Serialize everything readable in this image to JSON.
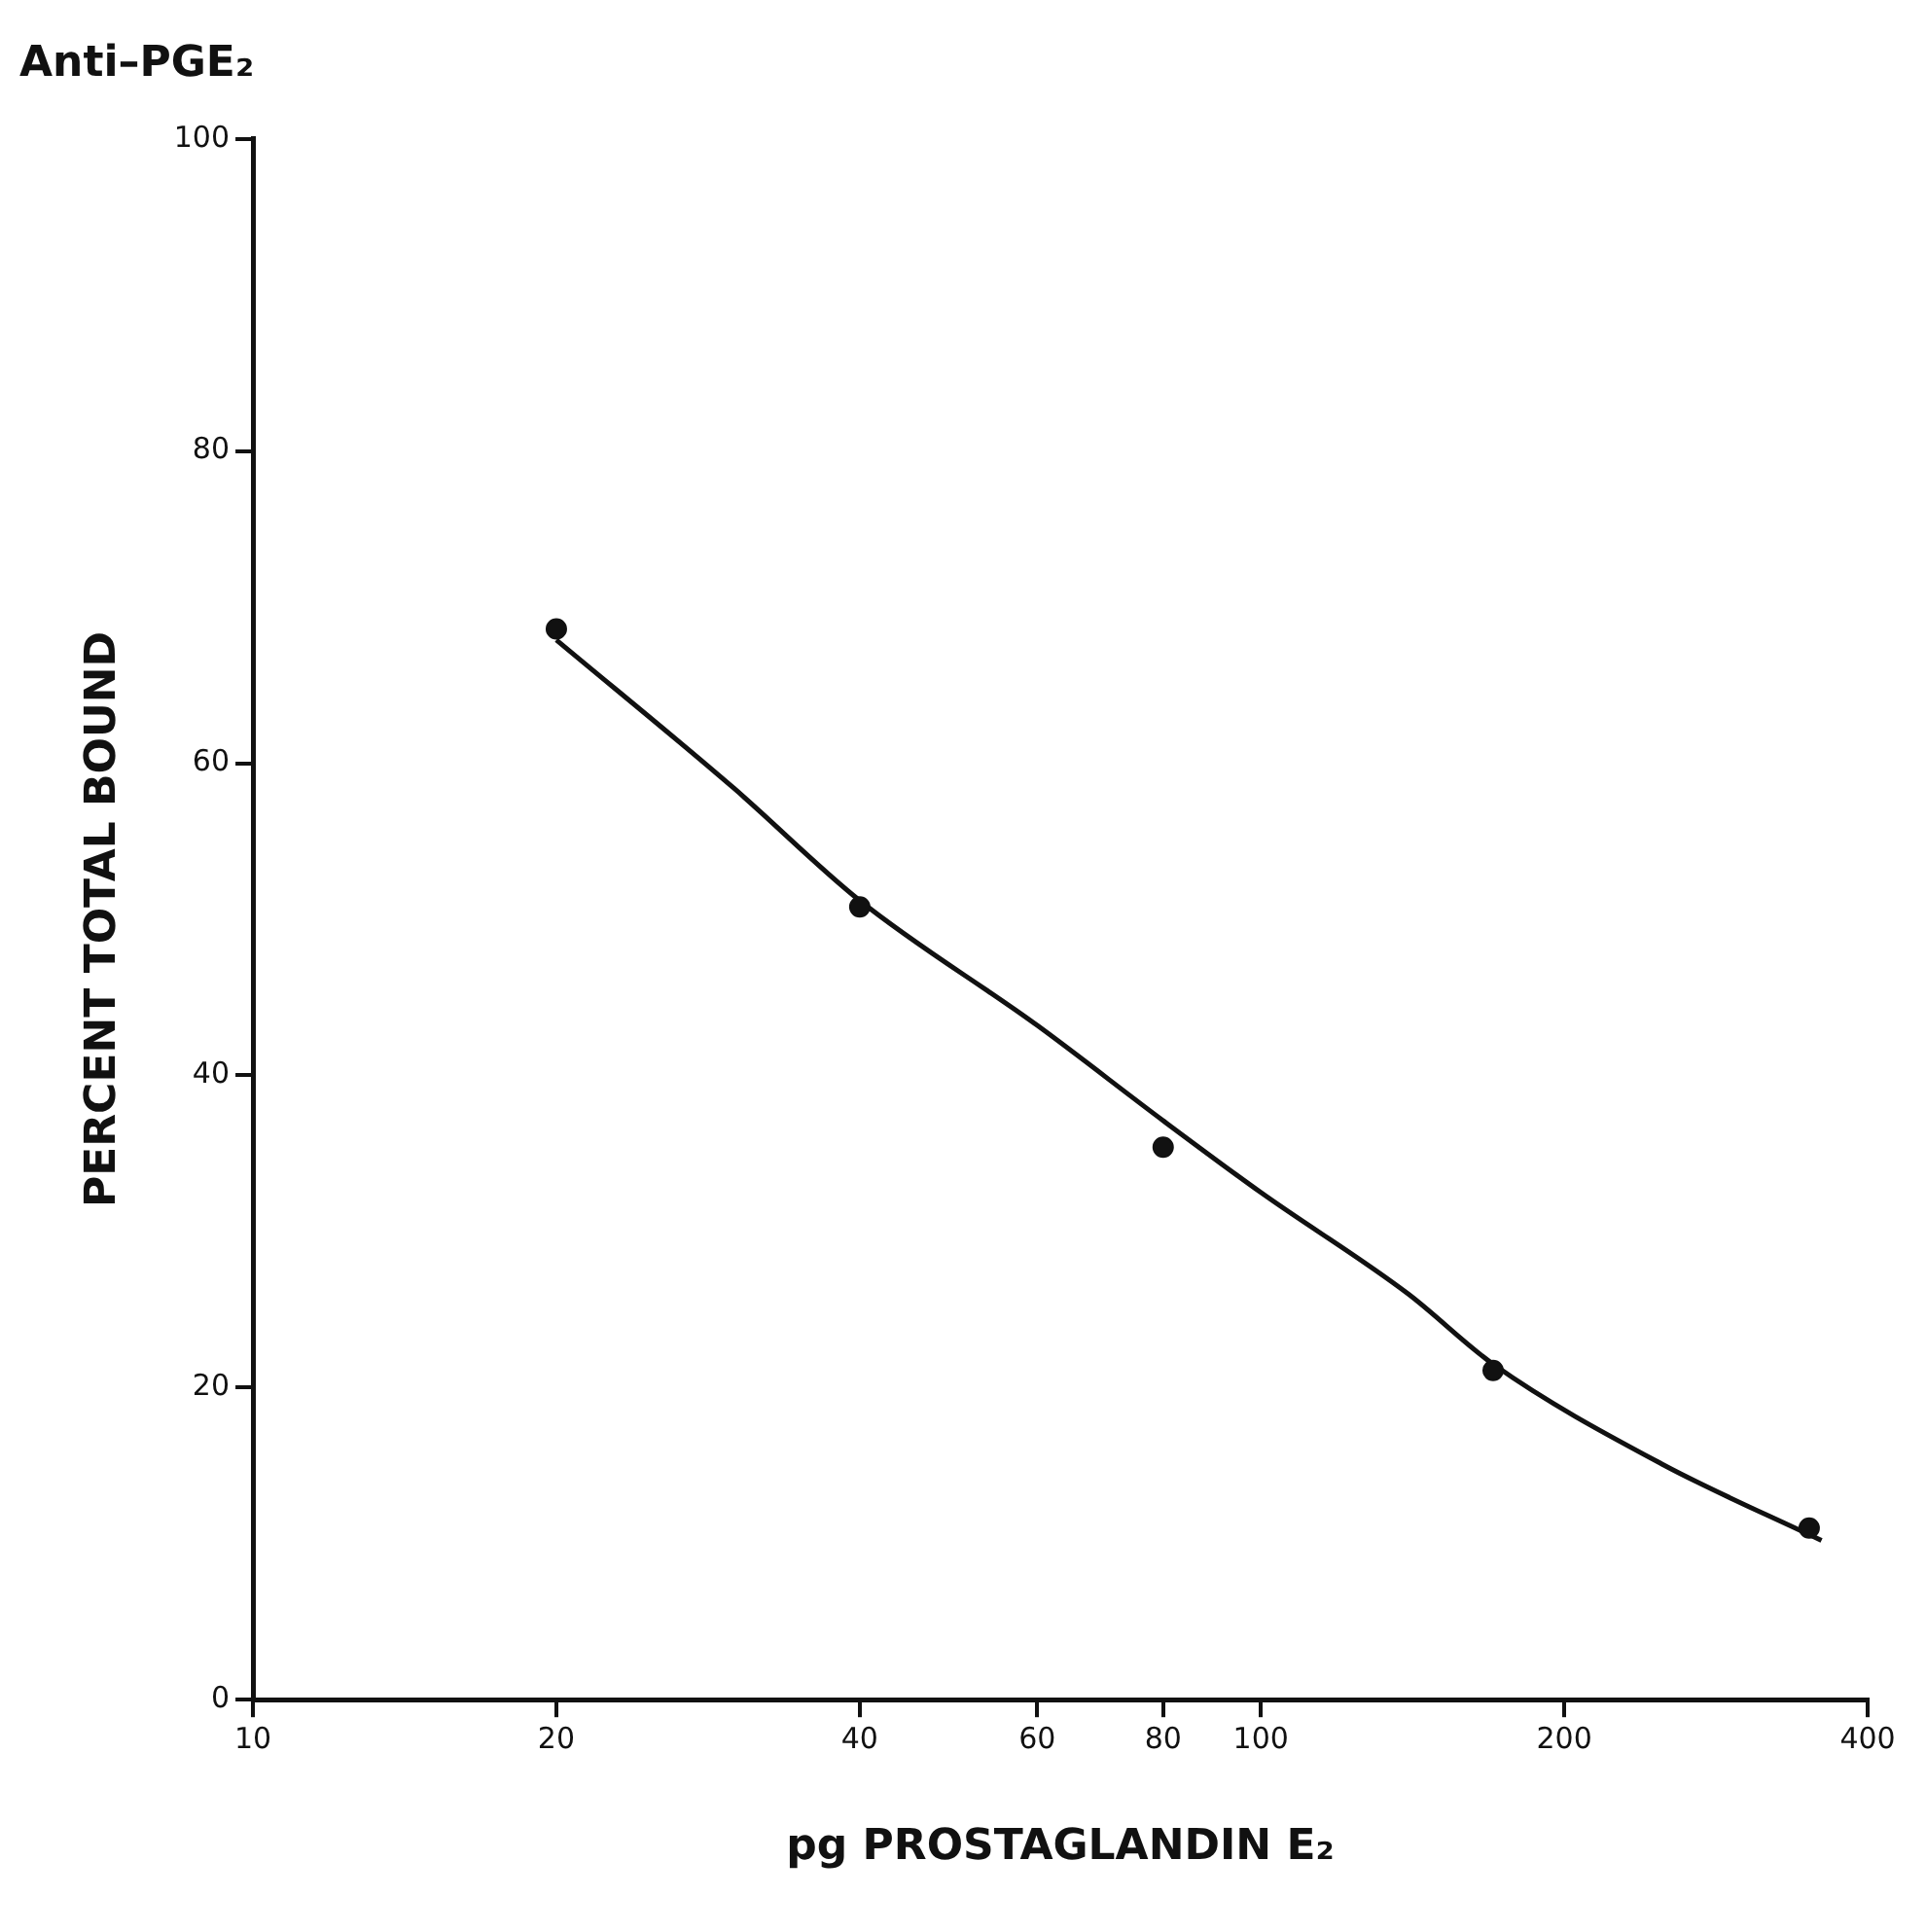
{
  "chart_data": {
    "type": "scatter",
    "title": "Anti–PGE₂",
    "xlabel": "pg PROSTAGLANDIN E₂",
    "ylabel": "PERCENT TOTAL BOUND",
    "log": "x",
    "xlim": [
      10,
      400
    ],
    "xticks": [
      10,
      20,
      40,
      60,
      80,
      100,
      200,
      400
    ],
    "ylim": [
      0,
      100
    ],
    "yticks": [
      0,
      20,
      40,
      60,
      80,
      100
    ],
    "grid": false,
    "legend": false,
    "marker": "circle",
    "series": [
      {
        "color": "#111111",
        "x": [
          20,
          40,
          80,
          170,
          350
        ],
        "values": [
          68.6,
          50.8,
          35.4,
          21.1,
          11.0
        ]
      },
      {
        "type": "line",
        "color": "#111111",
        "marker": "none",
        "line_style": "solid",
        "x": [
          20,
          30,
          40,
          60,
          80,
          100,
          140,
          170,
          250,
          360
        ],
        "values": [
          67.9,
          58.4,
          51.2,
          43.2,
          37.1,
          32.5,
          26.0,
          21.5,
          15.1,
          10.2
        ]
      }
    ]
  }
}
